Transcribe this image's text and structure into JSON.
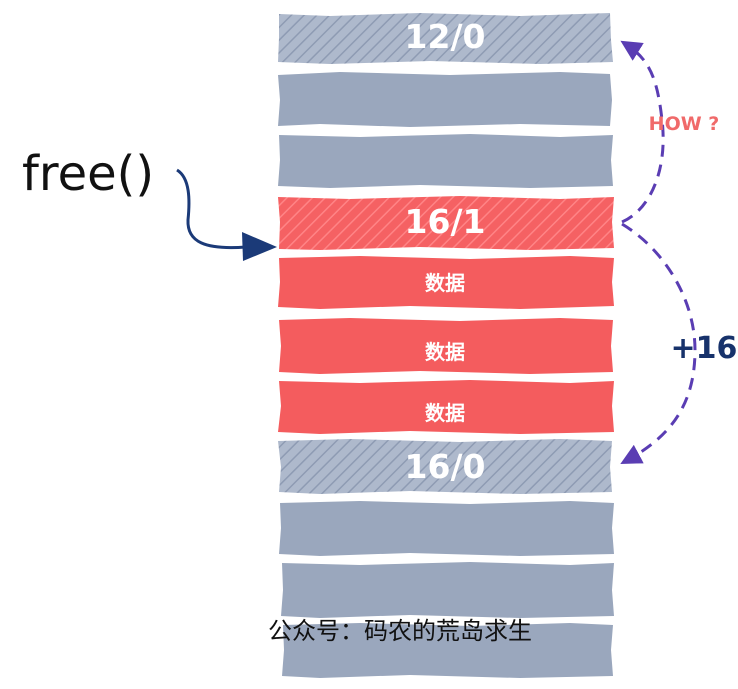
{
  "diagram": {
    "free_call": "free()",
    "how_label": "HOW ?",
    "offset_label": "+16",
    "watermark": "公众号：码农的荒岛求生",
    "colors": {
      "free_chunk": "#9aa7bd",
      "used_chunk": "#f45c5e",
      "arrow_dark": "#1b3a78",
      "arrow_purple": "#5a3db3",
      "how_text": "#f06a6a"
    },
    "blocks": [
      {
        "label": "12/0",
        "kind": "header-free"
      },
      {
        "label": "",
        "kind": "free"
      },
      {
        "label": "",
        "kind": "free"
      },
      {
        "label": "16/1",
        "kind": "header-used"
      },
      {
        "label": "数据",
        "kind": "data"
      },
      {
        "label": "数据",
        "kind": "data"
      },
      {
        "label": "数据",
        "kind": "data"
      },
      {
        "label": "16/0",
        "kind": "header-free"
      },
      {
        "label": "",
        "kind": "free"
      },
      {
        "label": "",
        "kind": "free"
      },
      {
        "label": "",
        "kind": "free"
      }
    ]
  }
}
